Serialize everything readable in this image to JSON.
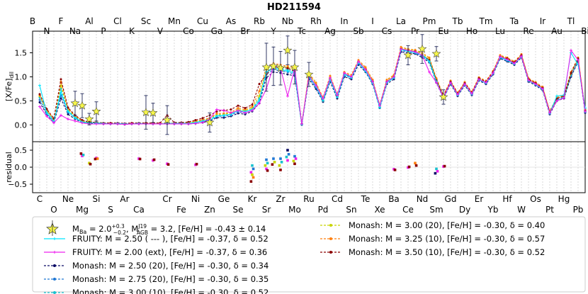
{
  "chart_data": {
    "type": "scatter",
    "title": "HD211594",
    "ylabel_top": "[X/Fe]",
    "ylabel_top_sub": "dil",
    "ylabel_bottom": "residual",
    "elements": [
      "C",
      "N",
      "O",
      "F",
      "Ne",
      "Na",
      "Mg",
      "Al",
      "Si",
      "P",
      "S",
      "Cl",
      "Ar",
      "K",
      "Ca",
      "Sc",
      "Ti",
      "V",
      "Cr",
      "Mn",
      "Fe",
      "Co",
      "Ni",
      "Cu",
      "Zn",
      "Ga",
      "Ge",
      "As",
      "Se",
      "Br",
      "Kr",
      "Rb",
      "Sr",
      "Y",
      "Zr",
      "Nb",
      "Mo",
      "Tc",
      "Ru",
      "Rh",
      "Pd",
      "Ag",
      "Cd",
      "In",
      "Sn",
      "Sb",
      "Te",
      "I",
      "Xe",
      "Cs",
      "Ba",
      "La",
      "Ce",
      "Pr",
      "Nd",
      "Pm",
      "Sm",
      "Eu",
      "Gd",
      "Tb",
      "Dy",
      "Ho",
      "Er",
      "Tm",
      "Yb",
      "Lu",
      "Hf",
      "Ta",
      "W",
      "Re",
      "Os",
      "Ir",
      "Pt",
      "Au",
      "Hg",
      "Tl",
      "Pb",
      "Bi"
    ],
    "top_axis_labels": [
      "B",
      "N",
      "F",
      "Na",
      "Al",
      "P",
      "Cl",
      "K",
      "Sc",
      "V",
      "Mn",
      "Co",
      "Cu",
      "Ga",
      "As",
      "Br",
      "Rb",
      "Y",
      "Nb",
      "Tc",
      "Rh",
      "Ag",
      "In",
      "Sb",
      "I",
      "Cs",
      "La",
      "Pr",
      "Pm",
      "Eu",
      "Tb",
      "Ho",
      "Tm",
      "Lu",
      "Ta",
      "Re",
      "Ir",
      "Au",
      "Tl",
      "Bi"
    ],
    "bottom_axis_labels": [
      "C",
      "O",
      "Ne",
      "Mg",
      "Si",
      "S",
      "Ar",
      "Ca",
      "Cr",
      "Fe",
      "Ni",
      "Zn",
      "Ge",
      "Se",
      "Kr",
      "Sr",
      "Zr",
      "Mo",
      "Ru",
      "Pd",
      "Cd",
      "Sn",
      "Te",
      "Xe",
      "Ba",
      "Ce",
      "Nd",
      "Sm",
      "Gd",
      "Dy",
      "Er",
      "Yb",
      "Hf",
      "W",
      "Os",
      "Pt",
      "Hg",
      "Pb"
    ],
    "ylim_top": [
      -0.35,
      1.95
    ],
    "yticks_top": [
      0.0,
      0.5,
      1.0,
      1.5
    ],
    "ytick_labels_top": [
      "0.0",
      "0.5",
      "1.0",
      "1.5"
    ],
    "ylim_bottom": [
      -0.75,
      0.75
    ],
    "yticks_bottom": [
      -0.5,
      0.0,
      0.5
    ],
    "ytick_labels_bottom": [
      "−0.5",
      "0.0",
      "0.5"
    ],
    "grid": "vertical dotted",
    "legend_position": "bottom",
    "observed": {
      "x": [
        "Na",
        "Mg",
        "Al",
        "Si",
        "Sc",
        "Ti",
        "Cr",
        "Zn",
        "Sr",
        "Y",
        "Zr",
        "Nb",
        "Mo",
        "Ru",
        "Ce",
        "Nd",
        "Sm",
        "Eu"
      ],
      "y": [
        0.45,
        0.4,
        0.12,
        0.28,
        0.26,
        0.25,
        0.1,
        0.05,
        1.2,
        1.22,
        1.18,
        1.55,
        1.2,
        1.05,
        1.45,
        1.58,
        1.48,
        0.58
      ],
      "err": [
        0.25,
        0.25,
        0.12,
        0.2,
        0.35,
        0.2,
        0.3,
        0.2,
        0.5,
        0.4,
        0.35,
        0.3,
        0.35,
        0.25,
        0.2,
        0.3,
        0.15,
        0.15
      ]
    },
    "series": [
      {
        "name": "Monash:  M = 2.50 (20),   [Fe/H] = -0.30,  δ = 0.34",
        "color": "#0b0b66",
        "style": "dash",
        "marker": "circle",
        "values": [
          0.47,
          0.22,
          0.05,
          0.55,
          0.22,
          0.12,
          0.05,
          0.03,
          0.03,
          0.02,
          0.02,
          0.02,
          0.01,
          0.02,
          0.02,
          0.02,
          0.02,
          0.02,
          0.02,
          0.02,
          0.02,
          0.02,
          0.03,
          0.05,
          0.08,
          0.15,
          0.15,
          0.18,
          0.24,
          0.22,
          0.28,
          0.45,
          0.98,
          1.1,
          1.08,
          1.05,
          1.02,
          0.0,
          0.95,
          0.75,
          0.48,
          0.9,
          0.55,
          1.0,
          0.95,
          1.25,
          1.1,
          0.85,
          0.35,
          0.85,
          0.95,
          1.52,
          1.5,
          1.48,
          1.4,
          1.3,
          0.88,
          0.55,
          0.85,
          0.6,
          0.82,
          0.62,
          0.92,
          0.85,
          1.05,
          1.38,
          1.32,
          1.25,
          1.4,
          0.9,
          0.82,
          0.72,
          0.22,
          0.5,
          0.55,
          1.0,
          1.32,
          0.25
        ]
      },
      {
        "name": "Monash:  M = 2.75 (20),   [Fe/H] = -0.30,  δ = 0.35",
        "color": "#1f77d4",
        "style": "dash",
        "marker": "circle",
        "values": [
          0.52,
          0.25,
          0.08,
          0.62,
          0.26,
          0.15,
          0.07,
          0.04,
          0.04,
          0.03,
          0.02,
          0.03,
          0.02,
          0.02,
          0.03,
          0.02,
          0.02,
          0.02,
          0.03,
          0.03,
          0.03,
          0.03,
          0.05,
          0.08,
          0.1,
          0.18,
          0.18,
          0.2,
          0.27,
          0.25,
          0.3,
          0.5,
          1.05,
          1.15,
          1.12,
          1.1,
          1.05,
          0.01,
          0.98,
          0.78,
          0.5,
          0.93,
          0.58,
          1.02,
          0.98,
          1.28,
          1.12,
          0.87,
          0.37,
          0.88,
          0.98,
          1.55,
          1.52,
          1.5,
          1.42,
          1.32,
          0.9,
          0.57,
          0.87,
          0.62,
          0.84,
          0.64,
          0.94,
          0.87,
          1.07,
          1.4,
          1.34,
          1.27,
          1.42,
          0.92,
          0.84,
          0.74,
          0.24,
          0.52,
          0.57,
          1.02,
          1.34,
          0.27
        ]
      },
      {
        "name": "Monash:  M = 3.00 (10),   [Fe/H] = -0.30,  δ = 0.52",
        "color": "#17c2cf",
        "style": "dash",
        "marker": "circle",
        "values": [
          0.57,
          0.28,
          0.1,
          0.75,
          0.3,
          0.17,
          0.08,
          0.05,
          0.04,
          0.03,
          0.03,
          0.03,
          0.02,
          0.03,
          0.03,
          0.03,
          0.03,
          0.03,
          0.03,
          0.03,
          0.03,
          0.04,
          0.06,
          0.09,
          0.12,
          0.2,
          0.2,
          0.22,
          0.3,
          0.28,
          0.33,
          0.55,
          1.1,
          1.2,
          1.17,
          1.15,
          1.1,
          0.01,
          1.02,
          0.82,
          0.52,
          0.96,
          0.6,
          1.05,
          1.0,
          1.3,
          1.15,
          0.9,
          0.38,
          0.9,
          1.0,
          1.57,
          1.54,
          1.52,
          1.45,
          1.35,
          0.92,
          0.58,
          0.88,
          0.63,
          0.85,
          0.65,
          0.95,
          0.88,
          1.08,
          1.42,
          1.36,
          1.28,
          1.43,
          0.93,
          0.85,
          0.75,
          0.25,
          0.53,
          0.58,
          1.05,
          1.36,
          0.28
        ]
      },
      {
        "name": "Monash:  M = 3.00 (20),   [Fe/H] = -0.30,  δ = 0.40",
        "color": "#c8d400",
        "style": "dash",
        "marker": "circle",
        "values": [
          0.6,
          0.3,
          0.11,
          0.82,
          0.32,
          0.18,
          0.08,
          0.05,
          0.05,
          0.04,
          0.03,
          0.03,
          0.02,
          0.03,
          0.03,
          0.03,
          0.03,
          0.03,
          0.03,
          0.03,
          0.03,
          0.04,
          0.07,
          0.1,
          0.13,
          0.22,
          0.22,
          0.24,
          0.32,
          0.3,
          0.35,
          0.6,
          1.15,
          1.25,
          1.22,
          1.2,
          1.15,
          0.02,
          1.05,
          0.85,
          0.55,
          1.0,
          0.62,
          1.08,
          1.02,
          1.33,
          1.18,
          0.92,
          0.4,
          0.92,
          1.02,
          1.6,
          1.57,
          1.55,
          1.48,
          1.38,
          0.95,
          0.6,
          0.9,
          0.65,
          0.87,
          0.67,
          0.97,
          0.9,
          1.1,
          1.44,
          1.38,
          1.3,
          1.45,
          0.95,
          0.87,
          0.77,
          0.27,
          0.55,
          0.6,
          1.07,
          1.38,
          0.3
        ]
      },
      {
        "name": "Monash:  M = 3.25 (10),   [Fe/H] = -0.30,  δ = 0.57",
        "color": "#ff7f0e",
        "style": "dash",
        "marker": "circle",
        "values": [
          0.62,
          0.32,
          0.12,
          0.9,
          0.34,
          0.19,
          0.09,
          0.06,
          0.05,
          0.04,
          0.03,
          0.03,
          0.02,
          0.03,
          0.03,
          0.03,
          0.03,
          0.03,
          0.03,
          0.04,
          0.04,
          0.05,
          0.08,
          0.11,
          0.14,
          0.24,
          0.24,
          0.26,
          0.35,
          0.32,
          0.38,
          0.7,
          1.2,
          1.28,
          1.25,
          1.22,
          1.18,
          0.02,
          1.08,
          0.88,
          0.57,
          1.02,
          0.64,
          1.1,
          1.04,
          1.35,
          1.2,
          0.94,
          0.42,
          0.94,
          1.04,
          1.62,
          1.58,
          1.56,
          1.5,
          1.4,
          0.97,
          0.62,
          0.92,
          0.67,
          0.89,
          0.69,
          0.99,
          0.92,
          1.12,
          1.45,
          1.4,
          1.32,
          1.47,
          0.97,
          0.89,
          0.79,
          0.29,
          0.57,
          0.62,
          1.1,
          1.4,
          0.32
        ]
      },
      {
        "name": "Monash:  M = 3.50 (10),   [Fe/H] = -0.30,  δ = 0.52",
        "color": "#8b0000",
        "style": "dash",
        "marker": "circle",
        "values": [
          0.64,
          0.33,
          0.13,
          0.95,
          0.36,
          0.2,
          0.1,
          0.06,
          0.05,
          0.04,
          0.04,
          0.04,
          0.03,
          0.04,
          0.04,
          0.04,
          0.04,
          0.04,
          0.2,
          0.05,
          0.05,
          0.06,
          0.1,
          0.14,
          0.2,
          0.28,
          0.3,
          0.32,
          0.4,
          0.35,
          0.42,
          0.85,
          1.05,
          1.22,
          1.2,
          1.18,
          1.12,
          0.02,
          1.0,
          0.82,
          0.5,
          0.95,
          0.6,
          1.05,
          1.0,
          1.3,
          1.15,
          0.9,
          0.4,
          0.9,
          1.0,
          1.58,
          1.55,
          1.53,
          1.45,
          1.35,
          0.93,
          0.6,
          0.9,
          0.65,
          0.87,
          0.67,
          0.97,
          0.9,
          1.1,
          1.42,
          1.38,
          1.3,
          1.45,
          0.95,
          0.87,
          0.77,
          0.27,
          0.55,
          0.6,
          1.08,
          1.38,
          0.3
        ]
      },
      {
        "name": "FRUITY:  M = 2.50 ( --- ),  [Fe/H] = -0.37,  δ = 0.52",
        "color": "#00e5ff",
        "style": "solid",
        "marker": "plus",
        "values": [
          0.82,
          0.24,
          0.06,
          0.68,
          0.28,
          0.14,
          0.06,
          0.04,
          0.04,
          0.03,
          0.02,
          0.03,
          0.02,
          0.02,
          0.03,
          0.02,
          0.02,
          0.02,
          0.03,
          0.03,
          0.03,
          0.03,
          0.05,
          0.08,
          0.1,
          0.18,
          0.2,
          0.22,
          0.3,
          0.28,
          0.32,
          0.5,
          1.1,
          1.18,
          1.15,
          1.12,
          1.08,
          0.01,
          1.0,
          0.8,
          0.5,
          0.95,
          0.58,
          1.05,
          0.98,
          1.3,
          1.12,
          0.87,
          0.36,
          0.88,
          0.98,
          1.57,
          1.53,
          1.5,
          1.45,
          1.32,
          0.9,
          0.56,
          0.87,
          0.62,
          0.84,
          0.64,
          0.94,
          0.87,
          1.07,
          1.4,
          1.34,
          1.27,
          1.42,
          0.92,
          0.84,
          0.74,
          0.24,
          0.6,
          0.62,
          1.5,
          1.25,
          0.35
        ]
      },
      {
        "name": "FRUITY:  M = 2.00 (ext),  [Fe/H] = -0.37,  δ = 0.36",
        "color": "#ee22ee",
        "style": "solid",
        "marker": "plus",
        "values": [
          0.38,
          0.18,
          0.04,
          0.2,
          0.12,
          0.08,
          0.04,
          0.02,
          0.02,
          0.02,
          0.02,
          0.02,
          0.01,
          0.02,
          0.02,
          0.02,
          0.02,
          0.02,
          0.02,
          0.02,
          0.02,
          0.02,
          0.03,
          0.05,
          0.12,
          0.32,
          0.3,
          0.25,
          0.3,
          0.25,
          0.3,
          0.45,
          0.75,
          1.22,
          1.18,
          0.6,
          1.18,
          0.02,
          1.02,
          0.82,
          0.55,
          0.98,
          0.62,
          1.08,
          1.0,
          1.32,
          1.15,
          0.9,
          0.4,
          0.9,
          1.0,
          1.58,
          1.55,
          1.52,
          1.45,
          1.1,
          0.88,
          0.57,
          0.88,
          0.63,
          0.85,
          0.65,
          0.95,
          0.88,
          1.08,
          1.42,
          1.36,
          1.28,
          1.43,
          0.93,
          0.85,
          0.75,
          0.25,
          0.5,
          0.56,
          1.55,
          1.35,
          0.28
        ]
      }
    ],
    "residuals": {
      "x": [
        "Mg",
        "Mg",
        "Mg",
        "Si",
        "Si",
        "Si",
        "Al",
        "Al",
        "Ca",
        "Ca",
        "Ti",
        "Ti",
        "Cr",
        "Cr",
        "Ni",
        "Ni",
        "Kr",
        "Kr",
        "Kr",
        "Kr",
        "Kr",
        "Kr",
        "Sr",
        "Sr",
        "Sr",
        "Sr",
        "Sr",
        "Y",
        "Y",
        "Y",
        "Zr",
        "Zr",
        "Zr",
        "Zr",
        "Nb",
        "Nb",
        "Nb",
        "Nb",
        "Mo",
        "Mo",
        "Mo",
        "Mo",
        "Ba",
        "Ba",
        "Ce",
        "Ce",
        "Pr",
        "Pr",
        "Sm",
        "Sm",
        "Sm",
        "Eu",
        "Eu"
      ],
      "y": [
        0.33,
        0.36,
        0.4,
        0.27,
        0.25,
        0.24,
        0.12,
        0.09,
        0.25,
        0.24,
        0.2,
        0.22,
        0.1,
        0.08,
        0.07,
        0.09,
        0.05,
        -0.05,
        -0.15,
        -0.22,
        -0.3,
        -0.42,
        0.22,
        0.12,
        0.05,
        -0.05,
        -0.1,
        0.25,
        0.15,
        0.08,
        0.25,
        0.15,
        0.05,
        -0.08,
        0.5,
        0.38,
        0.3,
        0.2,
        0.32,
        0.25,
        0.18,
        0.1,
        -0.06,
        -0.08,
        -0.01,
        0.01,
        0.12,
        0.05,
        -0.05,
        -0.12,
        -0.18,
        0.02,
        0.03
      ],
      "colors": [
        "#ee22ee",
        "#17c2cf",
        "#8b0000",
        "#ee22ee",
        "#ff7f0e",
        "#8b0000",
        "#c8d400",
        "#8b0000",
        "#ee22ee",
        "#8b0000",
        "#ee22ee",
        "#8b0000",
        "#ee22ee",
        "#8b0000",
        "#ee22ee",
        "#8b0000",
        "#17c2cf",
        "#1f77d4",
        "#ee22ee",
        "#c8d400",
        "#ff7f0e",
        "#8b0000",
        "#1f77d4",
        "#17c2cf",
        "#c8d400",
        "#ee22ee",
        "#8b0000",
        "#1f77d4",
        "#c8d400",
        "#8b0000",
        "#1f77d4",
        "#17c2cf",
        "#c8d400",
        "#8b0000",
        "#0b0b66",
        "#1f77d4",
        "#17c2cf",
        "#ee22ee",
        "#1f77d4",
        "#ee22ee",
        "#c8d400",
        "#8b0000",
        "#ee22ee",
        "#8b0000",
        "#ee22ee",
        "#8b0000",
        "#ff7f0e",
        "#8b0000",
        "#17c2cf",
        "#ee22ee",
        "#0b0b66",
        "#ee22ee",
        "#8b0000"
      ]
    },
    "legend": {
      "observed_label_parts": {
        "m_ba": "M",
        "m_ba_sub": "Ba",
        "m_ba_value": " = 2.0",
        "m_ba_sup": "+0.3",
        "m_ba_inf": "−0.2",
        "m_agb": ",  M",
        "m_agb_sup": "J19",
        "m_agb_sub": "AGB",
        "rest": " = 3.2,  [Fe/H] = -0.43 ± 0.14"
      }
    }
  }
}
